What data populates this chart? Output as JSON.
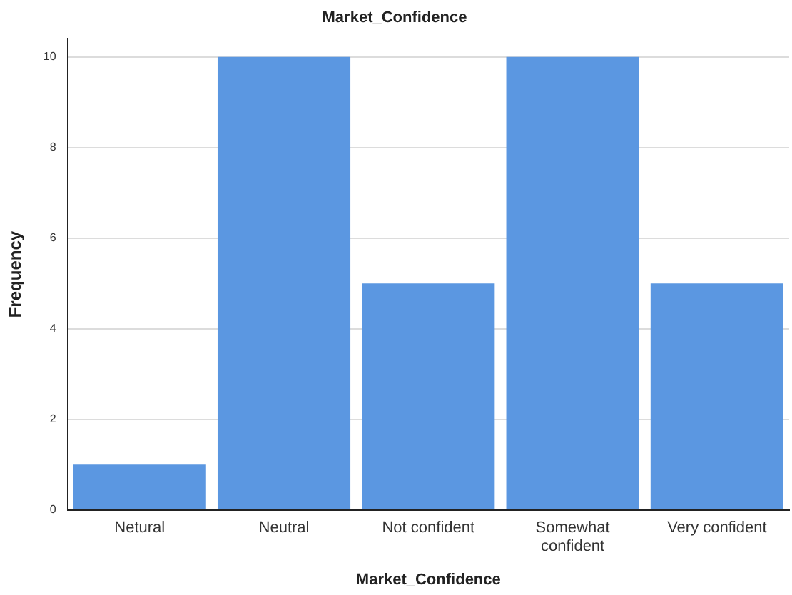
{
  "chart_data": {
    "type": "bar",
    "title": "Market_Confidence",
    "xlabel": "Market_Confidence",
    "ylabel": "Frequency",
    "categories": [
      "Netural",
      "Neutral",
      "Not confident",
      "Somewhat confident",
      "Very confident"
    ],
    "values": [
      1,
      10,
      5,
      10,
      5
    ],
    "color": "#5b97e1",
    "ylim": [
      0,
      10.4
    ],
    "yticks": [
      0,
      2,
      4,
      6,
      8,
      10
    ],
    "grid": "y"
  }
}
